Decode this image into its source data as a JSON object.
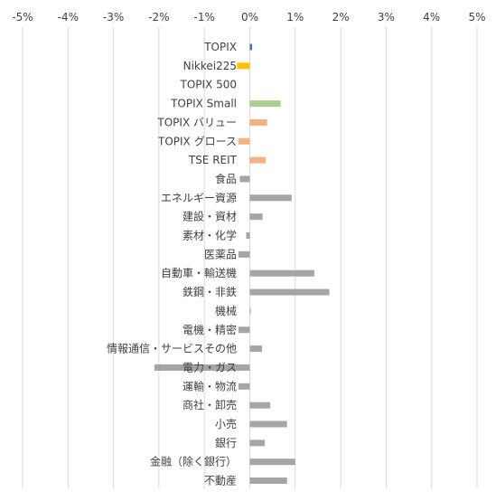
{
  "chart_data": {
    "type": "bar",
    "orientation": "horizontal",
    "title": "",
    "xlabel": "",
    "ylabel": "",
    "xlim": [
      -5,
      5
    ],
    "x_ticks": [
      {
        "value": -5,
        "label": "-5%"
      },
      {
        "value": -4,
        "label": "-4%"
      },
      {
        "value": -3,
        "label": "-3%"
      },
      {
        "value": -2,
        "label": "-2%"
      },
      {
        "value": -1,
        "label": "-1%"
      },
      {
        "value": 0,
        "label": "0%"
      },
      {
        "value": 1,
        "label": "1%"
      },
      {
        "value": 2,
        "label": "2%"
      },
      {
        "value": 3,
        "label": "3%"
      },
      {
        "value": 4,
        "label": "4%"
      },
      {
        "value": 5,
        "label": "5%"
      }
    ],
    "x_axis_position": "top",
    "grid": true,
    "legend": "none",
    "categories": [
      "TOPIX",
      "Nikkei225",
      "TOPIX 500",
      "TOPIX Small",
      "TOPIX バリュー",
      "TOPIX グロース",
      "TSE REIT",
      "食品",
      "エネルギー資源",
      "建設・資材",
      "素材・化学",
      "医薬品",
      "自動車・輸送機",
      "鉄鋼・非鉄",
      "機械",
      "電機・精密",
      "情報通信・サービスその他",
      "電力・ガス",
      "運輸・物流",
      "商社・卸売",
      "小売",
      "銀行",
      "金融（除く銀行）",
      "不動産"
    ],
    "values": [
      0.05,
      -0.28,
      0.0,
      0.68,
      0.38,
      -0.25,
      0.35,
      -0.22,
      0.92,
      0.28,
      -0.08,
      -0.25,
      1.42,
      1.75,
      0.02,
      -0.25,
      0.27,
      -2.1,
      -0.25,
      0.45,
      0.82,
      0.33,
      1.0,
      0.82
    ],
    "colors": [
      "#4472c4",
      "#ffc000",
      "#a5a5a5",
      "#a9d08e",
      "#f4b183",
      "#f4b183",
      "#f4b183",
      "#a5a5a5",
      "#a5a5a5",
      "#a5a5a5",
      "#a5a5a5",
      "#a5a5a5",
      "#a5a5a5",
      "#a5a5a5",
      "#a5a5a5",
      "#a5a5a5",
      "#a5a5a5",
      "#a5a5a5",
      "#a5a5a5",
      "#a5a5a5",
      "#a5a5a5",
      "#a5a5a5",
      "#a5a5a5",
      "#a5a5a5"
    ]
  }
}
